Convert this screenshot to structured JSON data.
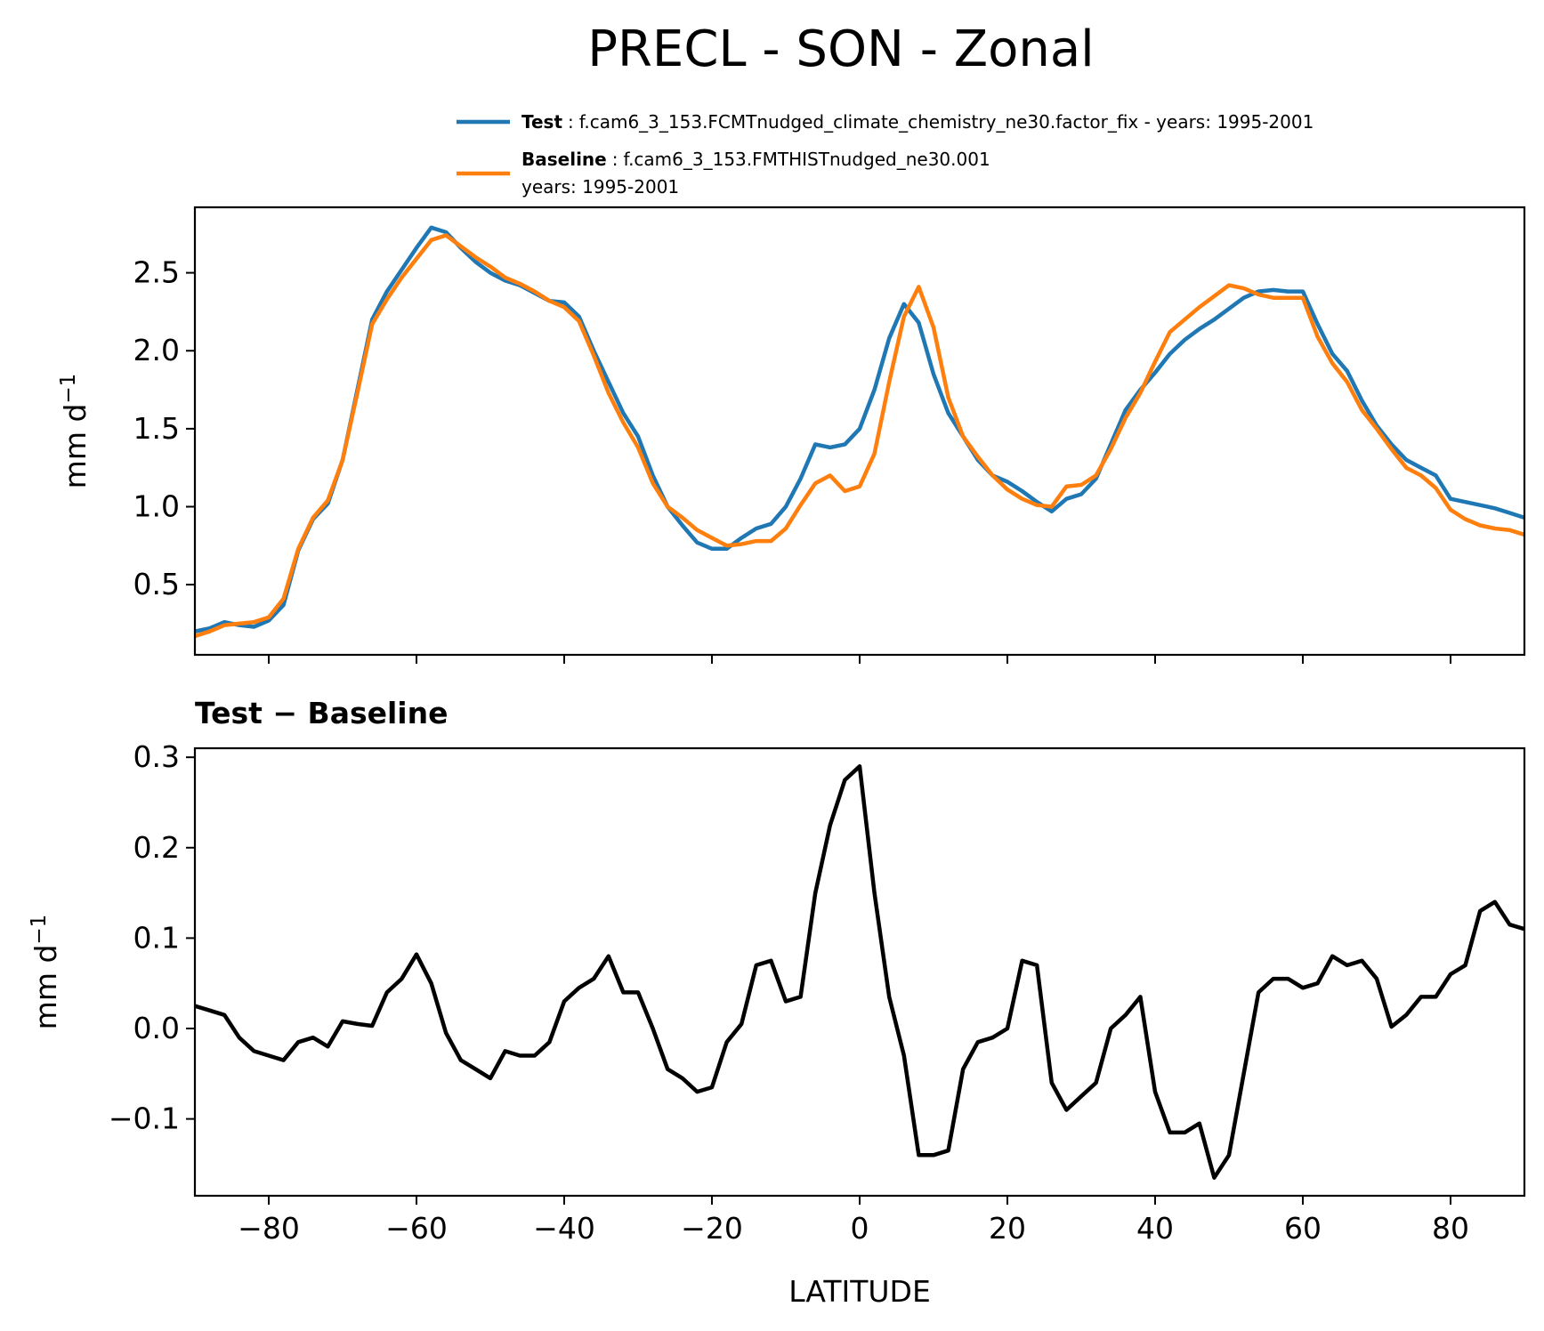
{
  "title": "PRECL - SON - Zonal",
  "legend": [
    {
      "name": "Test",
      "sep": ":",
      "text": "f.cam6_3_153.FCMTnudged_climate_chemistry_ne30.factor_fix - years: 1995-2001",
      "text2": "",
      "color": "#1f77b4"
    },
    {
      "name": "Baseline",
      "sep": ":",
      "text": "f.cam6_3_153.FMTHISTnudged_ne30.001",
      "text2": "years: 1995-2001",
      "color": "#ff7f0e"
    }
  ],
  "diff_title": "Test − Baseline",
  "xlabel": "LATITUDE",
  "ylabel_base": "mm d",
  "ylabel_sup": "−1",
  "chart_data": [
    {
      "type": "line",
      "title": "PRECL - SON - Zonal",
      "xlabel": "",
      "ylabel": "mm d−1",
      "xlim": [
        -90,
        90
      ],
      "ylim": [
        0.05,
        2.92
      ],
      "xticks": [
        -80,
        -60,
        -40,
        -20,
        0,
        20,
        40,
        60,
        80
      ],
      "yticks": [
        0.5,
        1.0,
        1.5,
        2.0,
        2.5
      ],
      "ytick_labels": [
        "0.5",
        "1.0",
        "1.5",
        "2.0",
        "2.5"
      ],
      "x": [
        -90,
        -88,
        -86,
        -84,
        -82,
        -80,
        -78,
        -76,
        -74,
        -72,
        -70,
        -68,
        -66,
        -64,
        -62,
        -60,
        -58,
        -56,
        -54,
        -52,
        -50,
        -48,
        -46,
        -44,
        -42,
        -40,
        -38,
        -36,
        -34,
        -32,
        -30,
        -28,
        -26,
        -24,
        -22,
        -20,
        -18,
        -16,
        -14,
        -12,
        -10,
        -8,
        -6,
        -4,
        -2,
        0,
        2,
        4,
        6,
        8,
        10,
        12,
        14,
        16,
        18,
        20,
        22,
        24,
        26,
        28,
        30,
        32,
        34,
        36,
        38,
        40,
        42,
        44,
        46,
        48,
        50,
        52,
        54,
        56,
        58,
        60,
        62,
        64,
        66,
        68,
        70,
        72,
        74,
        76,
        78,
        80,
        82,
        84,
        86,
        88,
        90
      ],
      "series": [
        {
          "name": "Test",
          "color": "#1f77b4",
          "values": [
            0.2,
            0.22,
            0.26,
            0.24,
            0.23,
            0.27,
            0.37,
            0.72,
            0.92,
            1.02,
            1.3,
            1.75,
            2.2,
            2.38,
            2.52,
            2.66,
            2.79,
            2.76,
            2.66,
            2.57,
            2.5,
            2.45,
            2.42,
            2.37,
            2.32,
            2.31,
            2.22,
            2.0,
            1.8,
            1.6,
            1.45,
            1.2,
            1.0,
            0.88,
            0.77,
            0.73,
            0.73,
            0.8,
            0.86,
            0.89,
            1.0,
            1.18,
            1.4,
            1.38,
            1.4,
            1.5,
            1.75,
            2.08,
            2.3,
            2.18,
            1.85,
            1.6,
            1.45,
            1.3,
            1.2,
            1.16,
            1.1,
            1.03,
            0.97,
            1.05,
            1.08,
            1.18,
            1.4,
            1.62,
            1.75,
            1.86,
            1.98,
            2.07,
            2.14,
            2.2,
            2.27,
            2.34,
            2.38,
            2.39,
            2.38,
            2.38,
            2.17,
            1.98,
            1.87,
            1.68,
            1.52,
            1.4,
            1.3,
            1.25,
            1.2,
            1.05,
            1.03,
            1.01,
            0.99,
            0.96,
            0.93
          ]
        },
        {
          "name": "Baseline",
          "color": "#ff7f0e",
          "values": [
            0.17,
            0.2,
            0.24,
            0.25,
            0.26,
            0.29,
            0.41,
            0.73,
            0.93,
            1.04,
            1.3,
            1.73,
            2.17,
            2.33,
            2.47,
            2.59,
            2.71,
            2.74,
            2.67,
            2.6,
            2.54,
            2.47,
            2.43,
            2.38,
            2.32,
            2.28,
            2.19,
            1.97,
            1.73,
            1.54,
            1.38,
            1.15,
            1.0,
            0.93,
            0.85,
            0.8,
            0.75,
            0.76,
            0.78,
            0.78,
            0.86,
            1.01,
            1.15,
            1.2,
            1.1,
            1.13,
            1.34,
            1.8,
            2.22,
            2.41,
            2.15,
            1.7,
            1.45,
            1.32,
            1.2,
            1.11,
            1.05,
            1.01,
            1.0,
            1.13,
            1.14,
            1.2,
            1.37,
            1.57,
            1.73,
            1.93,
            2.12,
            2.2,
            2.28,
            2.35,
            2.42,
            2.4,
            2.36,
            2.34,
            2.34,
            2.34,
            2.09,
            1.92,
            1.8,
            1.62,
            1.5,
            1.37,
            1.25,
            1.2,
            1.12,
            0.98,
            0.92,
            0.88,
            0.86,
            0.85,
            0.82
          ]
        }
      ]
    },
    {
      "type": "line",
      "title": "Test − Baseline",
      "xlabel": "LATITUDE",
      "ylabel": "mm d−1",
      "xlim": [
        -90,
        90
      ],
      "ylim": [
        -0.185,
        0.31
      ],
      "xticks": [
        -80,
        -60,
        -40,
        -20,
        0,
        20,
        40,
        60,
        80
      ],
      "xtick_labels": [
        "−80",
        "−60",
        "−40",
        "−20",
        "0",
        "20",
        "40",
        "60",
        "80"
      ],
      "yticks": [
        -0.1,
        0.0,
        0.1,
        0.2,
        0.3
      ],
      "ytick_labels": [
        "−0.1",
        "0.0",
        "0.1",
        "0.2",
        "0.3"
      ],
      "x": [
        -90,
        -88,
        -86,
        -84,
        -82,
        -80,
        -78,
        -76,
        -74,
        -72,
        -70,
        -68,
        -66,
        -64,
        -62,
        -60,
        -58,
        -56,
        -54,
        -52,
        -50,
        -48,
        -46,
        -44,
        -42,
        -40,
        -38,
        -36,
        -34,
        -32,
        -30,
        -28,
        -26,
        -24,
        -22,
        -20,
        -18,
        -16,
        -14,
        -12,
        -10,
        -8,
        -6,
        -4,
        -2,
        0,
        2,
        4,
        6,
        8,
        10,
        12,
        14,
        16,
        18,
        20,
        22,
        24,
        26,
        28,
        30,
        32,
        34,
        36,
        38,
        40,
        42,
        44,
        46,
        48,
        50,
        52,
        54,
        56,
        58,
        60,
        62,
        64,
        66,
        68,
        70,
        72,
        74,
        76,
        78,
        80,
        82,
        84,
        86,
        88,
        90
      ],
      "series": [
        {
          "name": "Test − Baseline",
          "color": "#000000",
          "values": [
            0.025,
            0.02,
            0.015,
            -0.01,
            -0.025,
            -0.03,
            -0.035,
            -0.015,
            -0.01,
            -0.02,
            0.008,
            0.005,
            0.003,
            0.04,
            0.055,
            0.082,
            0.05,
            -0.005,
            -0.035,
            -0.045,
            -0.055,
            -0.025,
            -0.03,
            -0.03,
            -0.015,
            0.03,
            0.045,
            0.055,
            0.08,
            0.04,
            0.04,
            0.0,
            -0.045,
            -0.055,
            -0.07,
            -0.065,
            -0.015,
            0.005,
            0.07,
            0.075,
            0.03,
            0.035,
            0.15,
            0.225,
            0.275,
            0.29,
            0.15,
            0.035,
            -0.03,
            -0.14,
            -0.14,
            -0.135,
            -0.045,
            -0.015,
            -0.01,
            0.0,
            0.075,
            0.07,
            -0.06,
            -0.09,
            -0.075,
            -0.06,
            0.0,
            0.015,
            0.035,
            -0.07,
            -0.115,
            -0.115,
            -0.105,
            -0.165,
            -0.14,
            -0.05,
            0.04,
            0.055,
            0.055,
            0.045,
            0.05,
            0.08,
            0.07,
            0.075,
            0.055,
            0.002,
            0.015,
            0.035,
            0.035,
            0.06,
            0.07,
            0.13,
            0.14,
            0.115,
            0.11
          ]
        }
      ]
    }
  ]
}
